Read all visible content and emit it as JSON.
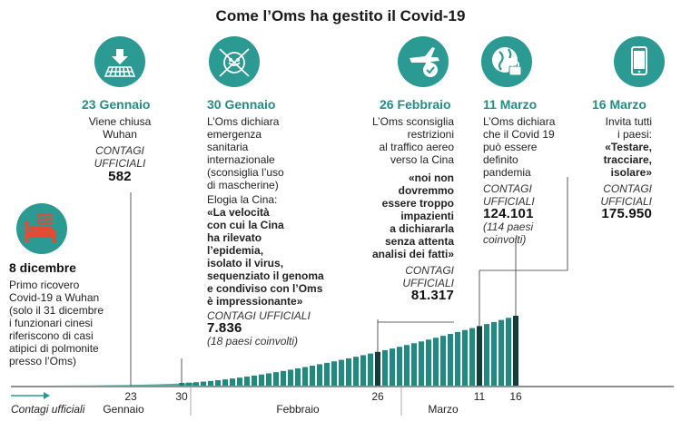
{
  "title": "Come l’Oms ha gestito il Covid-19",
  "events": {
    "dec8": {
      "date": "8 dicembre",
      "text": [
        "Primo ricovero",
        "Covid-19 a Wuhan",
        "(solo il 31 dicembre",
        "i funzionari cinesi",
        "riferiscono di casi",
        "atipici di polmonite",
        "presso l’Oms)"
      ]
    },
    "jan23": {
      "date": "23 Gennaio",
      "text": [
        "Viene chiusa",
        "Wuhan"
      ],
      "contagi_label": [
        "CONTAGI",
        "UFFICIALI"
      ],
      "contagi": "582"
    },
    "jan30": {
      "date": "30 Gennaio",
      "text": [
        "L’Oms dichiara",
        "emergenza",
        "sanitaria",
        "internazionale",
        "(sconsiglia l’uso",
        "di mascherine)"
      ],
      "text2": "Elogia la Cina:",
      "quote": [
        "«La velocità",
        "con cui la Cina",
        "ha rilevato",
        "l’epidemia,",
        "isolato il virus,",
        "sequenziato il genoma",
        "e condiviso con l’Oms",
        "è impressionante»"
      ],
      "contagi_label": "CONTAGI UFFICIALI",
      "contagi": "7.836",
      "note": "(18 paesi coinvolti)"
    },
    "feb26": {
      "date": "26 Febbraio",
      "text": [
        "L’Oms sconsiglia",
        "restrizioni",
        "al traffico aereo",
        "verso la Cina"
      ],
      "quote": [
        "«noi non",
        "dovremmo",
        "essere troppo",
        "impazienti",
        "a dichiararla",
        "senza attenta",
        "analisi dei fatti»"
      ],
      "contagi_label": [
        "CONTAGI",
        "UFFICIALI"
      ],
      "contagi": "81.317"
    },
    "mar11": {
      "date": "11 Marzo",
      "text": [
        "L’Oms dichiara",
        "che  il Covid 19",
        "può essere",
        "definito",
        "pandemia"
      ],
      "contagi_label": [
        "CONTAGI",
        "UFFICIALI"
      ],
      "contagi": "124.101",
      "note": [
        "(114 paesi",
        "coinvolti)"
      ]
    },
    "mar16": {
      "date": "16 Marzo",
      "text": [
        "Invita tutti",
        "i paesi:"
      ],
      "quote": [
        "«Testare,",
        "tracciare,",
        "isolare»"
      ],
      "contagi_label": [
        "CONTAGI",
        "UFFICIALI"
      ],
      "contagi": "175.950"
    }
  },
  "icons": [
    "grid-lockdown-icon",
    "virus-mask-icon",
    "airplane-check-icon",
    "globe-lock-icon",
    "smartphone-icon",
    "hospital-bed-icon"
  ],
  "colors": {
    "teal": "#2a9a92",
    "bar": "#1f8a80",
    "dark_bar": "#0f3f3c",
    "text": "#222222"
  },
  "chart_data": {
    "type": "bar",
    "legend": "Contagi ufficiali",
    "months": [
      "Gennaio",
      "Febbraio",
      "Marzo"
    ],
    "tick_labels": [
      "23",
      "30",
      "26",
      "11",
      "16"
    ],
    "highlighted_days": [
      23,
      30,
      26,
      11,
      16
    ],
    "values": [
      {
        "date": "2020-01-23",
        "value": 582
      },
      {
        "date": "2020-01-30",
        "value": 7836
      },
      {
        "date": "2020-02-26",
        "value": 81317
      },
      {
        "date": "2020-03-11",
        "value": 124101
      },
      {
        "date": "2020-03-16",
        "value": 175950
      }
    ]
  }
}
